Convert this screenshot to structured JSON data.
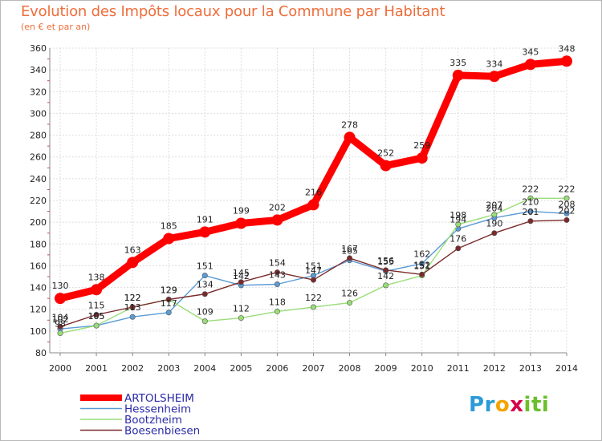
{
  "chart_data": {
    "type": "line",
    "title": "Evolution des Impôts locaux pour la Commune par Habitant",
    "subtitle": "(en € et par an)",
    "xlabel": "",
    "ylabel": "",
    "categories": [
      "2000",
      "2001",
      "2002",
      "2003",
      "2004",
      "2005",
      "2006",
      "2007",
      "2008",
      "2009",
      "2010",
      "2011",
      "2012",
      "2013",
      "2014"
    ],
    "ylim": [
      80,
      360
    ],
    "yticks": [
      80,
      100,
      120,
      140,
      160,
      180,
      200,
      220,
      240,
      260,
      280,
      300,
      320,
      340,
      360
    ],
    "grid": true,
    "legend_position": "bottom-left",
    "series": [
      {
        "name": "ARTOLSHEIM",
        "color": "#ff0000",
        "values": [
          130,
          138,
          163,
          185,
          191,
          199,
          202,
          216,
          278,
          252,
          259,
          335,
          334,
          345,
          348
        ]
      },
      {
        "name": "Hessenheim",
        "color": "#5b9bd5",
        "values": [
          102,
          105,
          113,
          117,
          151,
          142,
          143,
          151,
          165,
          155,
          162,
          194,
          204,
          210,
          208
        ]
      },
      {
        "name": "Bootzheim",
        "color": "#99dd77",
        "values": [
          98,
          105,
          122,
          129,
          109,
          112,
          118,
          122,
          126,
          142,
          151,
          198,
          207,
          222,
          222
        ]
      },
      {
        "name": "Boesenbiesen",
        "color": "#7a2a2a",
        "values": [
          104,
          115,
          122,
          129,
          134,
          145,
          154,
          147,
          167,
          156,
          152,
          176,
          190,
          201,
          202
        ]
      }
    ]
  },
  "logo": {
    "letters": [
      "P",
      "r",
      "o",
      "x",
      "i",
      "t",
      "i"
    ],
    "colors": [
      "#2b9bd8",
      "#2b9bd8",
      "#f4a400",
      "#d6004c",
      "#6bbf2a",
      "#6bbf2a",
      "#6bbf2a"
    ]
  }
}
